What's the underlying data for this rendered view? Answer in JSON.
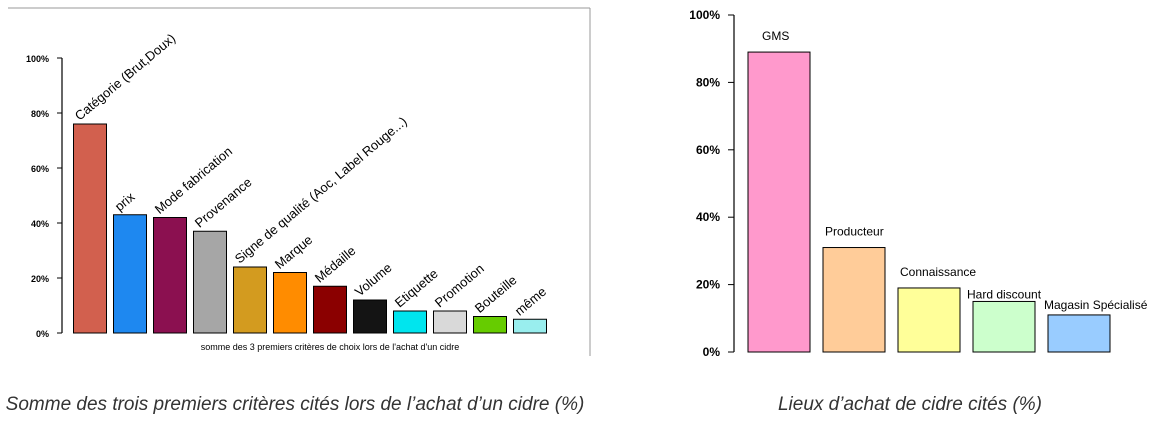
{
  "chart_data": [
    {
      "type": "bar",
      "categories": [
        "Catégorie (Brut,Doux)",
        "prix",
        "Mode fabrication",
        "Provenance",
        "Signe de qualité (Aoc, Label Rouge...)",
        "Marque",
        "Médaille",
        "Volume",
        "Etiquette",
        "Promotion",
        "Bouteille",
        "même"
      ],
      "values": [
        76,
        43,
        42,
        37,
        24,
        22,
        17,
        12,
        8,
        8,
        6,
        5
      ],
      "colors": [
        "#D2604E",
        "#1E88F0",
        "#8B1050",
        "#A6A6A6",
        "#D39B1F",
        "#FF8C00",
        "#8B0000",
        "#141414",
        "#00E5EE",
        "#D9D9D9",
        "#66CC00",
        "#99EEEE"
      ],
      "ylim": [
        0,
        100
      ],
      "yticks": [
        "0%",
        "20%",
        "40%",
        "60%",
        "80%",
        "100%"
      ],
      "xlabel": "somme des 3 premiers critères de choix lors de l'achat d'un cidre",
      "caption": "Somme des trois premiers critères cités lors de l’achat d’un cidre (%)"
    },
    {
      "type": "bar",
      "categories": [
        "GMS",
        "Producteur",
        "Connaissance",
        "Hard discount",
        "Magasin Spécialisé"
      ],
      "values": [
        89,
        31,
        19,
        15,
        11
      ],
      "colors": [
        "#FF99CC",
        "#FFCC99",
        "#FFFF99",
        "#CCFFCC",
        "#99CCFF"
      ],
      "ylim": [
        0,
        100
      ],
      "yticks": [
        "0%",
        "20%",
        "40%",
        "60%",
        "80%",
        "100%"
      ],
      "caption": "Lieux d’achat de cidre cités (%)"
    }
  ]
}
